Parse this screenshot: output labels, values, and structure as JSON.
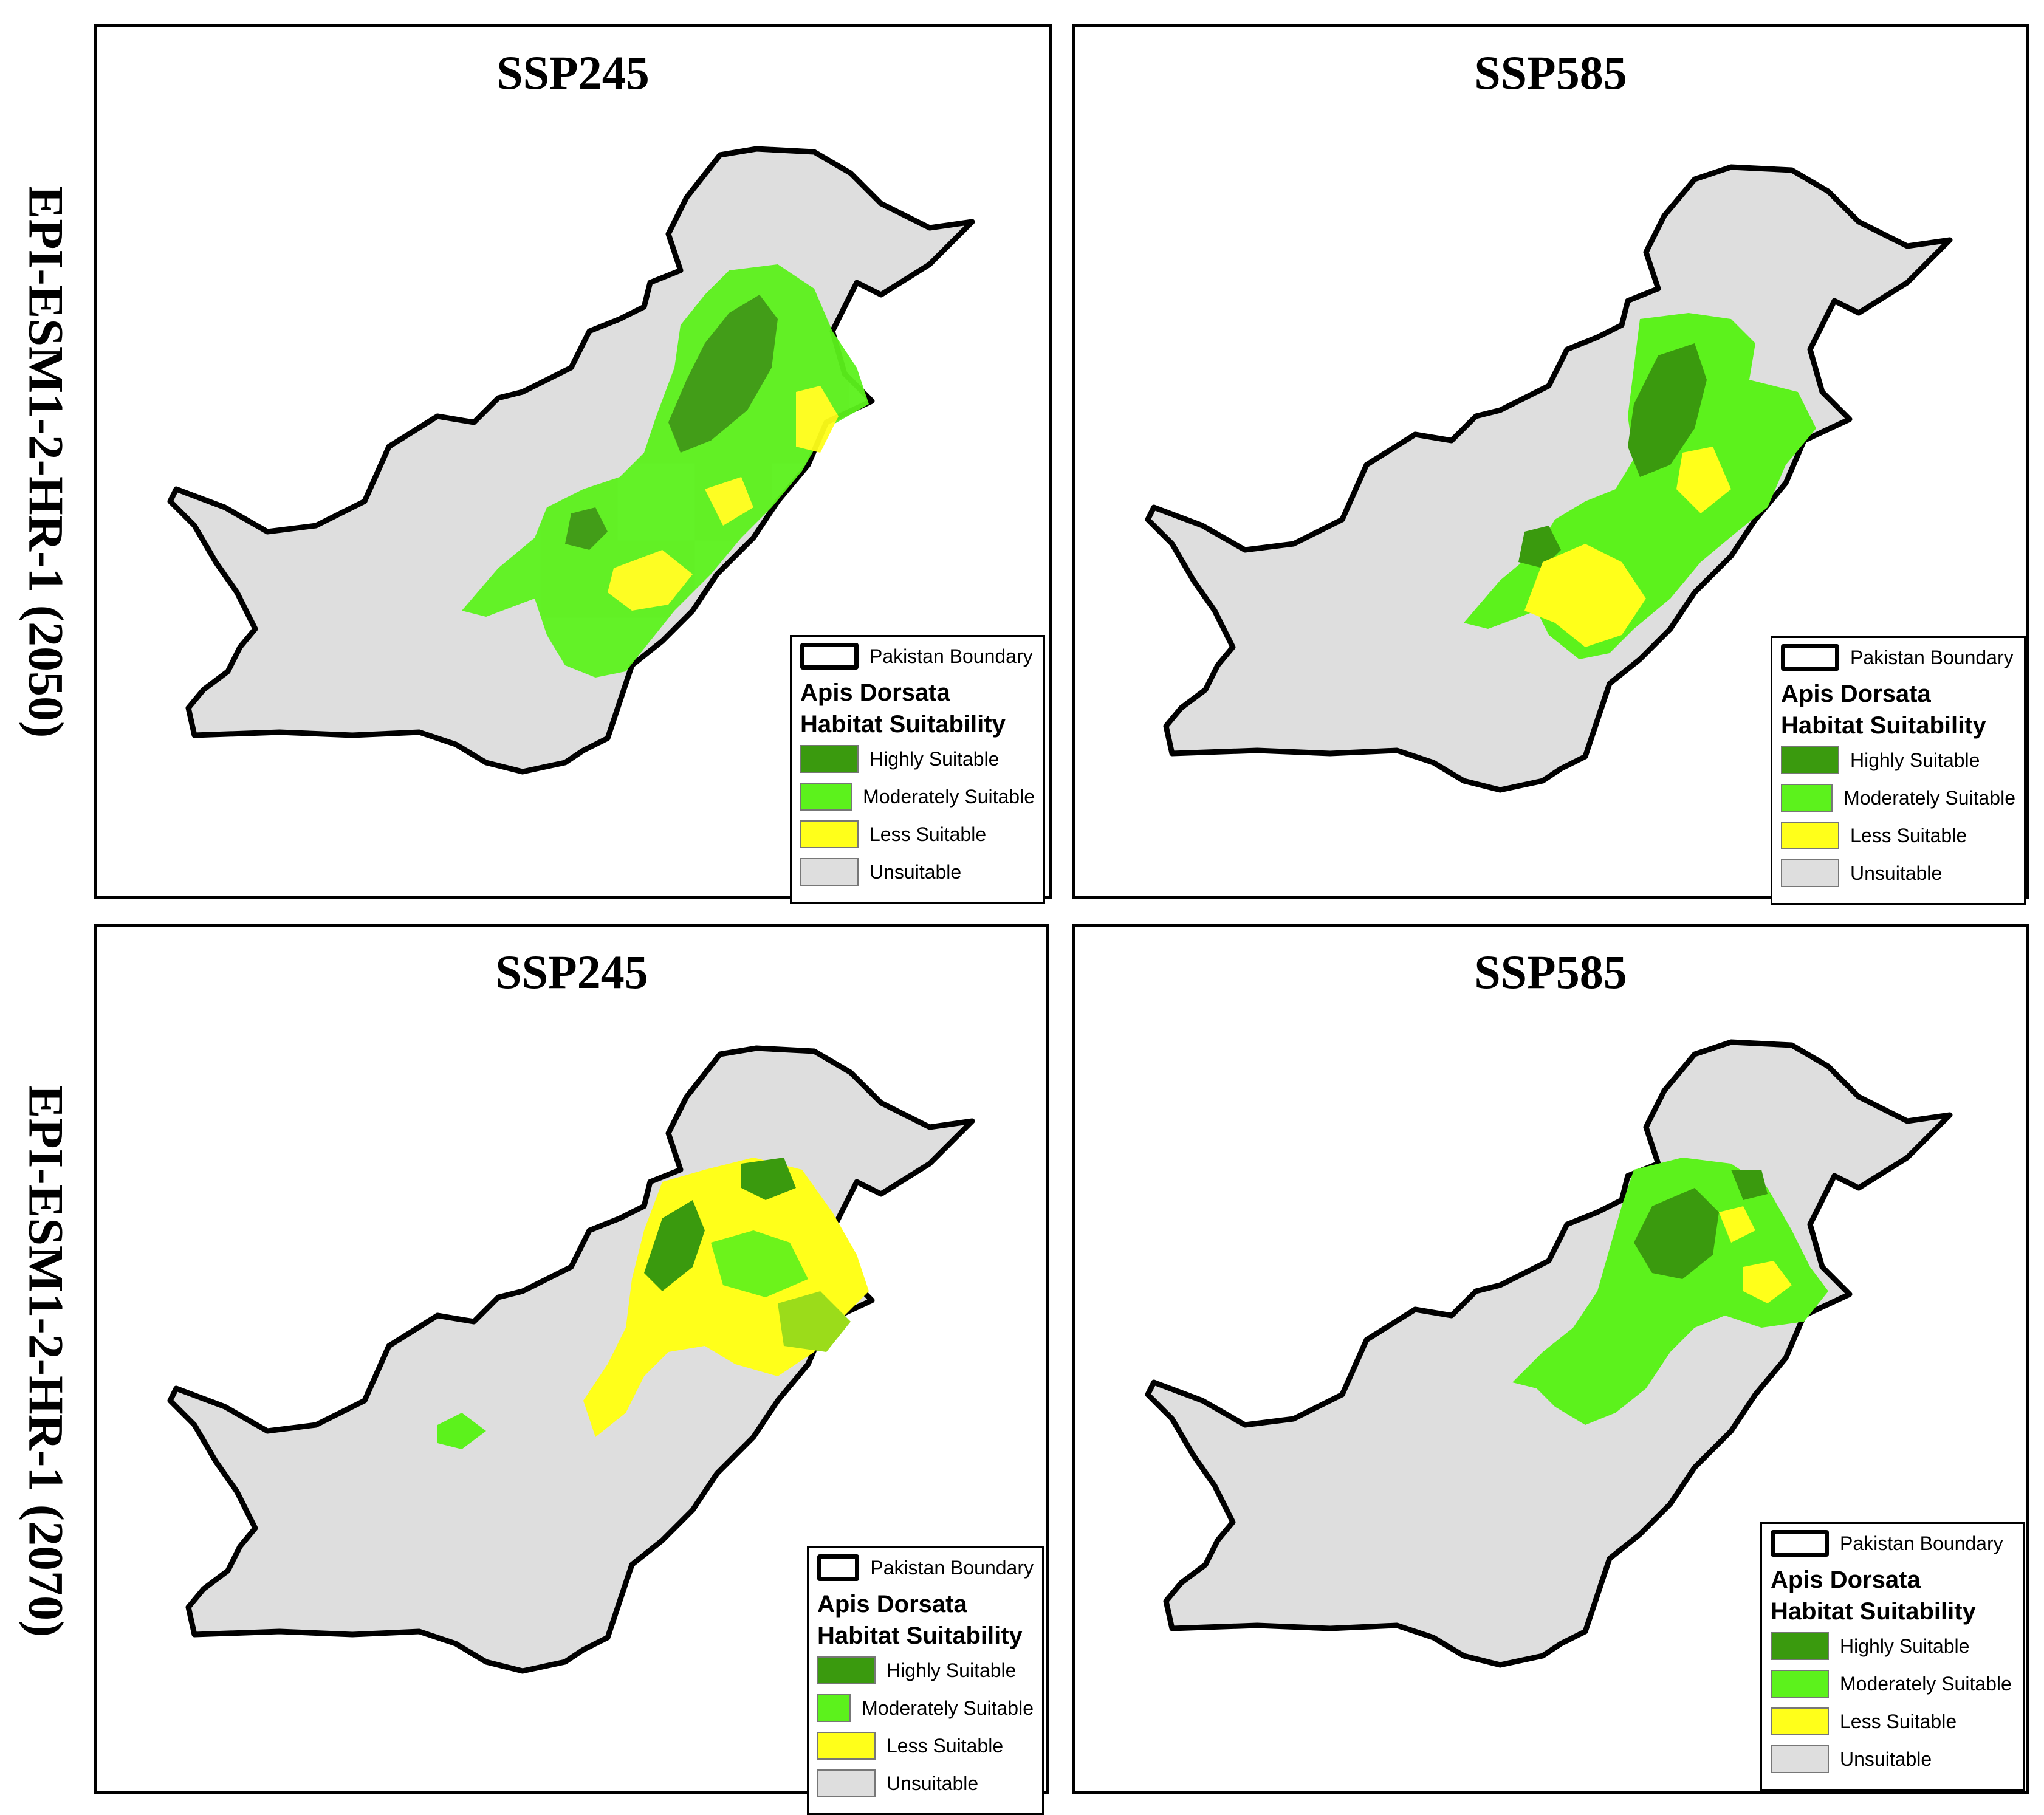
{
  "rows": [
    {
      "label": "EPI-ESM1-2-HR-1 (2050)"
    },
    {
      "label": "EPI-ESM1-2-HR-1 (2070)"
    }
  ],
  "panels": [
    {
      "title": "SSP245"
    },
    {
      "title": "SSP585"
    },
    {
      "title": "SSP245"
    },
    {
      "title": "SSP585"
    }
  ],
  "legend": {
    "boundary_label": "Pakistan Boundary",
    "title_line1": "Apis Dorsata",
    "title_line2": "Habitat Suitability",
    "classes": [
      {
        "label": "Highly Suitable",
        "color": "#3a9a0e"
      },
      {
        "label": "Moderately Suitable",
        "color": "#5cf21c"
      },
      {
        "label": "Less Suitable",
        "color": "#ffff1a"
      },
      {
        "label": "Unsuitable",
        "color": "#dedede"
      }
    ]
  }
}
